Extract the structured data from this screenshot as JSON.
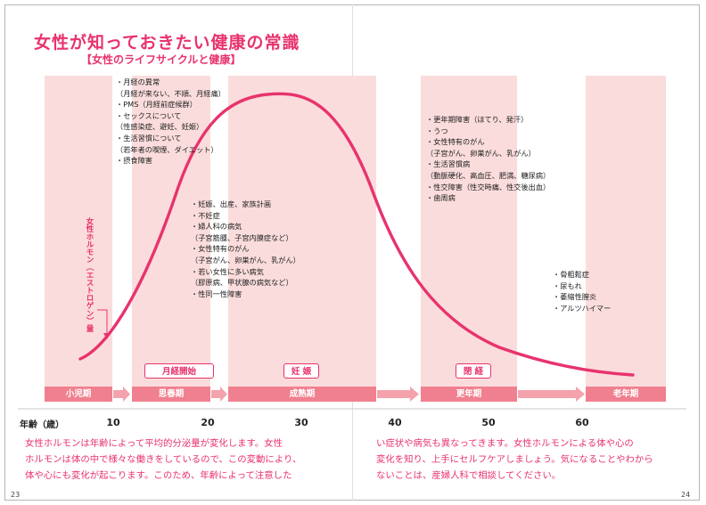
{
  "title": "女性が知っておきたい健康の常識",
  "subtitle": "【女性のライフサイクルと健康】",
  "hormone_label": "女性ホルモン（エストロゲン）量",
  "stage_bands": [
    {
      "name": "小児期"
    },
    {
      "name": "思春期"
    },
    {
      "name": "成熟期"
    },
    {
      "name": "更年期"
    },
    {
      "name": "老年期"
    }
  ],
  "events": {
    "menarche": "月経開始",
    "pregnancy": "妊 娠",
    "menopause": "閉 経"
  },
  "axis": {
    "label": "年齢（歳）",
    "ticks": [
      "10",
      "20",
      "30",
      "40",
      "50",
      "60"
    ]
  },
  "issues": {
    "puberty": [
      "・月経の異常",
      "（月経が来ない、不順、月経痛）",
      "・PMS（月経前症候群）",
      "・セックスについて",
      "（性感染症、避妊、妊娠）",
      "・生活習慣について",
      "（若年者の喫煙、ダイエット）",
      "・摂食障害"
    ],
    "maturity": [
      "・妊娠、出産、家族計画",
      "・不妊症",
      "・婦人科の病気",
      "（子宮筋腫、子宮内膜症など）",
      "・女性特有のがん",
      "（子宮がん、卵巣がん、乳がん）",
      "・若い女性に多い病気",
      "（膠原病、甲状腺の病気など）",
      "・性同一性障害"
    ],
    "menopause": [
      "・更年期障害（ほてり、発汗）",
      "・うつ",
      "・女性特有のがん",
      "（子宮がん、卵巣がん、乳がん）",
      "・生活習慣病",
      "（動脈硬化、高血圧、肥満、糖尿病）",
      "・性交障害（性交時痛、性交後出血）",
      "・歯周病"
    ],
    "senescence": [
      "・骨粗鬆症",
      "・尿もれ",
      "・萎縮性膣炎",
      "・アルツハイマー"
    ]
  },
  "body_left": [
    "女性ホルモンは年齢によって平均的分泌量が変化します。女性",
    "ホルモンは体の中で様々な働きをしているので、この変動により、",
    "体や心にも変化が起こります。このため、年齢によって注意した"
  ],
  "body_right": [
    "い症状や病気も異なってきます。女性ホルモンによる体や心の",
    "変化を知り、上手にセルフケアしましょう。気になることやわから",
    "ないことは、産婦人科で相談してください。"
  ],
  "page_numbers": {
    "left": "23",
    "right": "24"
  },
  "colors": {
    "accent": "#e8336d",
    "band": "#fbdcdc",
    "stage": "#f0808f"
  }
}
